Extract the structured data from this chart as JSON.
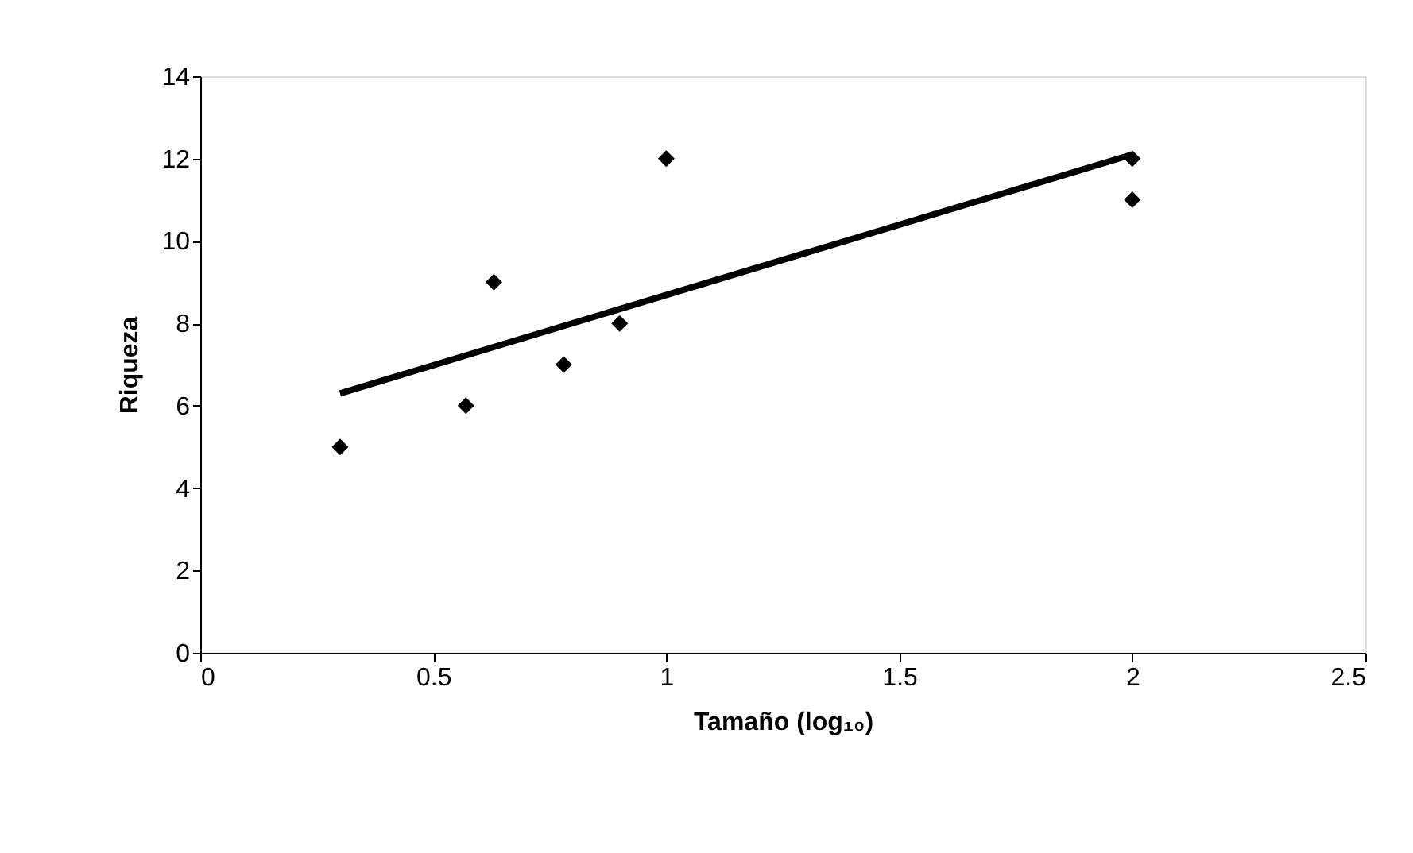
{
  "chart_data": {
    "type": "scatter",
    "xlabel": "Tamaño (log₁₀)",
    "ylabel": "Riqueza",
    "series": [
      {
        "color": "#000000",
        "marker": "diamond",
        "x": [
          0.3,
          0.57,
          0.63,
          0.78,
          0.9,
          1.0,
          2.0,
          2.0
        ],
        "values": [
          5,
          6,
          9,
          7,
          8,
          12,
          12,
          11
        ]
      },
      {
        "type": "line",
        "color": "#000000",
        "x": [
          0.3,
          2.0
        ],
        "values": [
          6.3,
          12.1
        ]
      }
    ],
    "xlim": [
      0,
      2.5
    ],
    "xticks": [
      0,
      0.5,
      1,
      1.5,
      2,
      2.5
    ],
    "ylim": [
      0,
      14
    ],
    "yticks": [
      0,
      2,
      4,
      6,
      8,
      10,
      12,
      14
    ],
    "grid": false
  }
}
